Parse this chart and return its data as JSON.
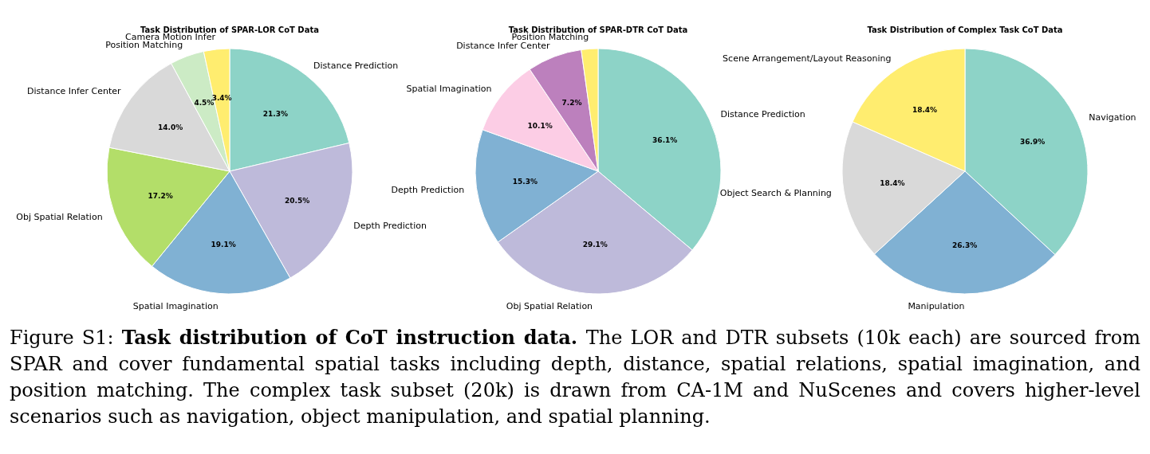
{
  "chart_data": [
    {
      "type": "pie",
      "title": "Task Distribution of SPAR-LOR CoT Data",
      "categories": [
        "Distance Prediction",
        "Depth Prediction",
        "Spatial Imagination",
        "Obj Spatial Relation",
        "Distance Infer Center",
        "Position Matching",
        "Camera Motion Infer"
      ],
      "values": [
        21.3,
        20.5,
        19.1,
        17.2,
        14.0,
        4.5,
        3.4
      ],
      "colors": [
        "#8dd3c7",
        "#bebada",
        "#80b1d3",
        "#b3de69",
        "#d9d9d9",
        "#ccebc5",
        "#ffed6f"
      ],
      "value_labels": [
        "21.3%",
        "20.5%",
        "19.1%",
        "17.2%",
        "14.0%",
        "4.5%",
        "3.4%"
      ],
      "legend": false
    },
    {
      "type": "pie",
      "title": "Task Distribution of SPAR-DTR CoT Data",
      "categories": [
        "Distance Prediction",
        "Obj Spatial Relation",
        "Depth Prediction",
        "Spatial Imagination",
        "Distance Infer Center",
        "Position Matching"
      ],
      "values": [
        36.1,
        29.1,
        15.3,
        10.1,
        7.2,
        2.2
      ],
      "colors": [
        "#8dd3c7",
        "#bebada",
        "#80b1d3",
        "#fccde5",
        "#bc80bd",
        "#ffed6f"
      ],
      "value_labels": [
        "36.1%",
        "29.1%",
        "15.3%",
        "10.1%",
        "7.2%",
        null
      ],
      "legend": false
    },
    {
      "type": "pie",
      "title": "Task Distribution of Complex Task CoT Data",
      "categories": [
        "Navigation",
        "Manipulation",
        "Object Search & Planning",
        "Scene Arrangement/Layout Reasoning"
      ],
      "values": [
        36.9,
        26.3,
        18.4,
        18.4
      ],
      "colors": [
        "#8dd3c7",
        "#80b1d3",
        "#d9d9d9",
        "#ffed6f"
      ],
      "value_labels": [
        "36.9%",
        "26.3%",
        "18.4%",
        "18.4%"
      ],
      "legend": false,
      "annotations": [
        "Figure S1:",
        "Task distribution of CoT instruction data.",
        "The LOR and DTR subsets (10k each) are sourced from SPAR and cover fundamental spatial tasks including depth, distance, spatial relations, spatial imagination, and position matching. The complex task subset (20k) is drawn from CA-1M and NuScenes and covers higher-level scenarios such as navigation, object manipulation, and spatial planning."
      ]
    }
  ]
}
